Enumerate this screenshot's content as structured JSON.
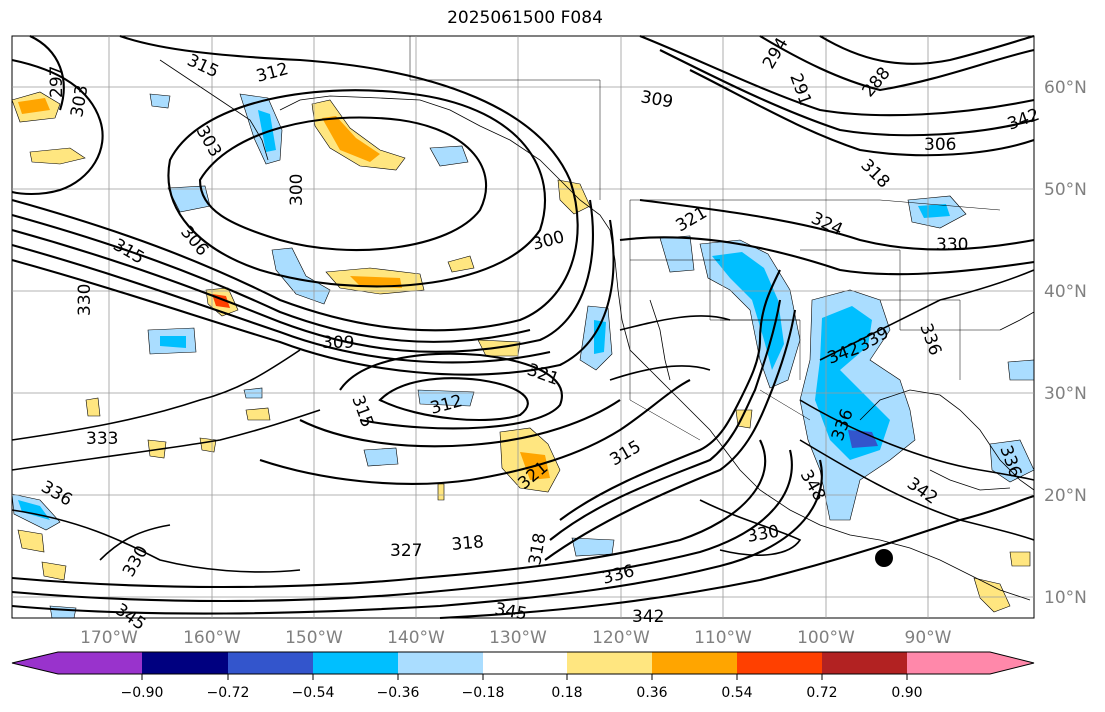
{
  "title": "2025061500 F084",
  "lat_labels": [
    "60°N",
    "50°N",
    "40°N",
    "30°N",
    "20°N",
    "10°N"
  ],
  "lon_labels": [
    "170°W",
    "160°W",
    "150°W",
    "140°W",
    "130°W",
    "120°W",
    "110°W",
    "100°W",
    "90°W"
  ],
  "contour_labels": [
    "315",
    "312",
    "309",
    "303",
    "297",
    "303",
    "300",
    "306",
    "315",
    "330",
    "309",
    "300",
    "321",
    "324",
    "330",
    "294",
    "291",
    "288",
    "306",
    "318",
    "342",
    "339",
    "336",
    "321",
    "312",
    "315",
    "333",
    "336",
    "330",
    "327",
    "318",
    "318",
    "321",
    "315",
    "336",
    "345",
    "342",
    "345",
    "330",
    "348",
    "342",
    "336",
    "336",
    "342"
  ],
  "colorbar": {
    "tick_labels": [
      "−0.90",
      "−0.72",
      "−0.54",
      "−0.36",
      "−0.18",
      "0.18",
      "0.36",
      "0.54",
      "0.72",
      "0.90"
    ],
    "colors": [
      "#9933cc",
      "#000080",
      "#3355cc",
      "#00bfff",
      "#aaddff",
      "#ffffff",
      "#ffe680",
      "#ffa500",
      "#ff4000",
      "#b22222",
      "#ff88aa"
    ]
  }
}
